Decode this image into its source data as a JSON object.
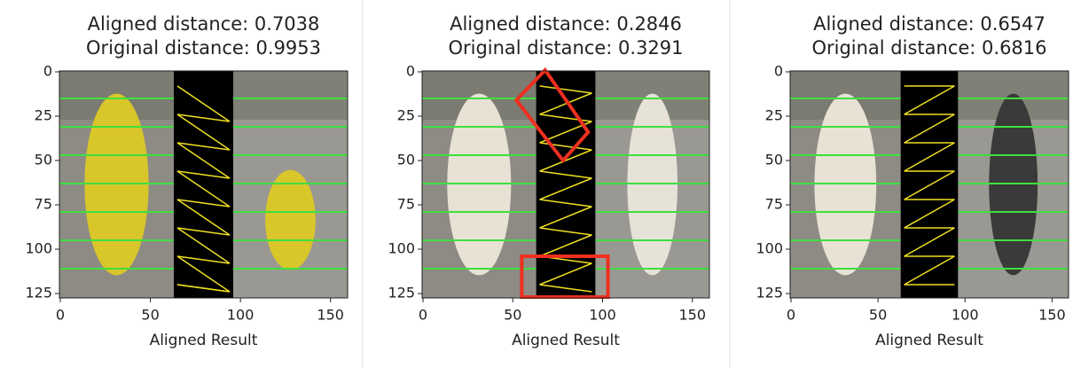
{
  "panels": [
    {
      "title_lines": [
        "Aligned distance: 0.7038",
        "Original distance: 0.9953"
      ],
      "xlabel": "Aligned Result",
      "xticks": [
        0,
        50,
        100,
        150
      ],
      "yticks": [
        0,
        25,
        50,
        75,
        100,
        125
      ],
      "xlim": [
        -0.5,
        159.5
      ],
      "ylim": [
        127.5,
        -0.5
      ]
    },
    {
      "title_lines": [
        "Aligned distance: 0.2846",
        "Original distance: 0.3291"
      ],
      "xlabel": "Aligned Result",
      "xticks": [
        0,
        50,
        100,
        150
      ],
      "yticks": [
        0,
        25,
        50,
        75,
        100,
        125
      ],
      "xlim": [
        -0.5,
        159.5
      ],
      "ylim": [
        127.5,
        -0.5
      ]
    },
    {
      "title_lines": [
        "Aligned distance: 0.6547",
        "Original distance: 0.6816"
      ],
      "xlabel": "Aligned Result",
      "xticks": [
        0,
        50,
        100,
        150
      ],
      "yticks": [
        0,
        25,
        50,
        75,
        100,
        125
      ],
      "xlim": [
        -0.5,
        159.5
      ],
      "ylim": [
        127.5,
        -0.5
      ]
    }
  ]
}
